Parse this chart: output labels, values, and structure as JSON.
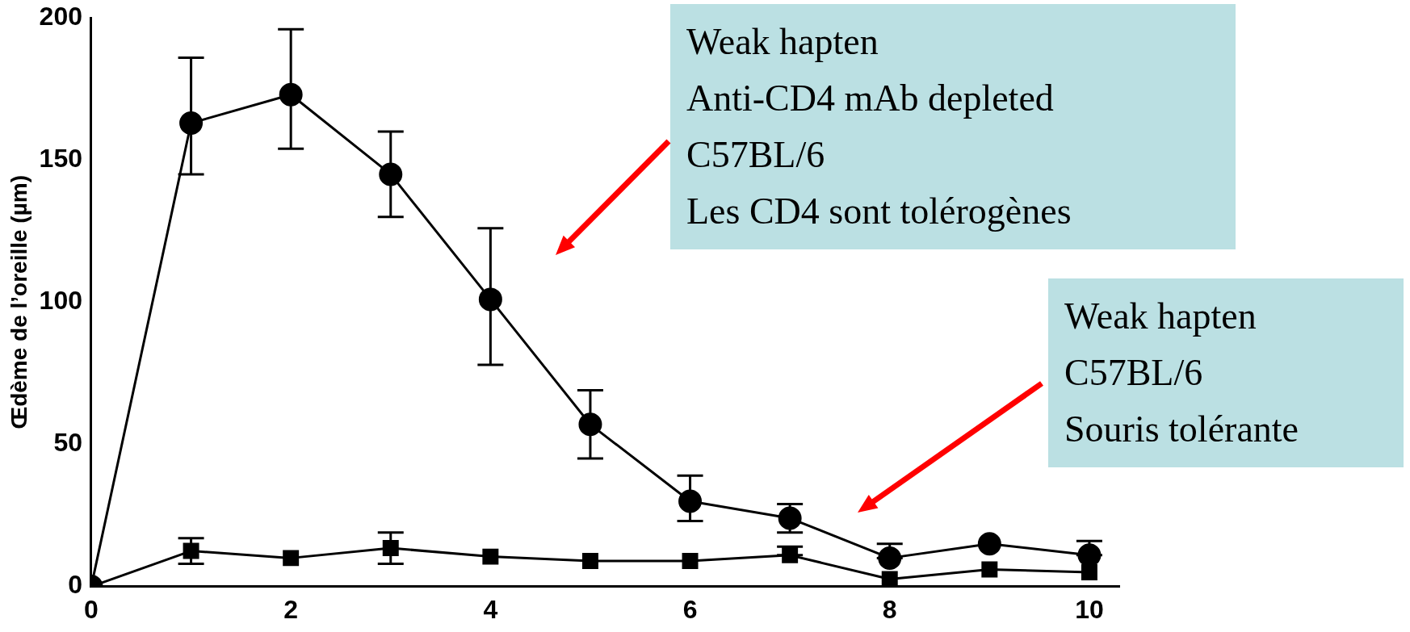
{
  "chart_data": {
    "type": "line",
    "ylabel": "Œdème de l’oreille (µm)",
    "x": [
      0,
      1,
      2,
      3,
      4,
      5,
      6,
      7,
      8,
      9,
      10
    ],
    "xlim": [
      0,
      10.3
    ],
    "xticks": [
      0,
      2,
      4,
      6,
      8,
      10
    ],
    "ylim": [
      0,
      200
    ],
    "yticks": [
      0,
      50,
      100,
      150,
      200
    ],
    "grid": false,
    "legend": false,
    "line_style": "solid",
    "series": [
      {
        "color": "#000000",
        "marker": "circle",
        "values": [
          0,
          163,
          173,
          145,
          101,
          57,
          30,
          24,
          10,
          15,
          11
        ],
        "errors": [
          null,
          [
            145,
            186
          ],
          [
            154,
            196
          ],
          [
            130,
            160
          ],
          [
            78,
            126
          ],
          [
            45,
            69
          ],
          [
            23,
            39
          ],
          [
            19,
            29
          ],
          [
            10,
            15
          ],
          null,
          [
            11,
            16
          ]
        ]
      },
      {
        "color": "#000000",
        "marker": "square",
        "values": [
          0,
          12.5,
          10,
          13.5,
          10.5,
          9,
          9,
          11,
          2.6,
          6,
          5
        ],
        "errors": [
          null,
          [
            8,
            17
          ],
          null,
          [
            8,
            19
          ],
          null,
          null,
          null,
          [
            11,
            14
          ],
          null,
          null,
          null
        ]
      }
    ],
    "annotations": [
      "Weak hapten\nAnti-CD4 mAb depleted\nC57BL/6\nLes CD4 sont tolérogènes",
      "Weak hapten\nC57BL/6\nSouris tolérante"
    ]
  }
}
